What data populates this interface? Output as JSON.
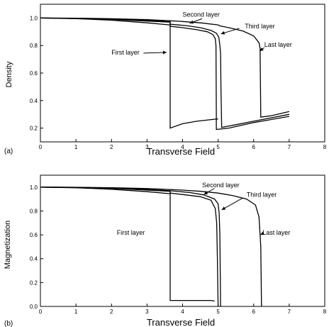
{
  "chart_data": [
    {
      "panel_label": "(a)",
      "type": "line",
      "xlabel": "Transverse Field",
      "ylabel": "Density",
      "xlim": [
        0,
        8
      ],
      "ylim": [
        0.1,
        1.1
      ],
      "xticks": [
        "0",
        "1",
        "2",
        "3",
        "4",
        "5",
        "6",
        "7",
        "8"
      ],
      "yticks": [
        {
          "v": 0.2,
          "label": "0.2"
        },
        {
          "v": 0.4,
          "label": "0.4"
        },
        {
          "v": 0.6,
          "label": "0.6"
        },
        {
          "v": 0.8,
          "label": "0.8"
        },
        {
          "v": 1.0,
          "label": "1.0"
        }
      ],
      "series": [
        {
          "name": "First layer",
          "points": [
            [
              0,
              1.0
            ],
            [
              0.5,
              0.998
            ],
            [
              1,
              0.995
            ],
            [
              1.5,
              0.99
            ],
            [
              2,
              0.984
            ],
            [
              2.5,
              0.975
            ],
            [
              3,
              0.965
            ],
            [
              3.5,
              0.953
            ],
            [
              3.65,
              0.95
            ],
            [
              3.65,
              0.2
            ],
            [
              4,
              0.232
            ],
            [
              4.4,
              0.25
            ],
            [
              4.8,
              0.262
            ],
            [
              5.0,
              0.267
            ]
          ]
        },
        {
          "name": "Second layer",
          "points": [
            [
              0,
              1.0
            ],
            [
              1,
              0.997
            ],
            [
              2,
              0.99
            ],
            [
              3,
              0.978
            ],
            [
              3.65,
              0.97
            ],
            [
              3.65,
              0.94
            ],
            [
              4,
              0.93
            ],
            [
              4.4,
              0.915
            ],
            [
              4.7,
              0.9
            ],
            [
              4.85,
              0.88
            ],
            [
              4.92,
              0.85
            ],
            [
              4.94,
              0.8
            ],
            [
              4.95,
              0.3
            ],
            [
              4.95,
              0.19
            ],
            [
              5.3,
              0.2
            ],
            [
              6,
              0.24
            ],
            [
              7,
              0.285
            ]
          ]
        },
        {
          "name": "Third layer",
          "points": [
            [
              0,
              1.0
            ],
            [
              1,
              0.998
            ],
            [
              2,
              0.992
            ],
            [
              3,
              0.982
            ],
            [
              3.65,
              0.972
            ],
            [
              3.65,
              0.955
            ],
            [
              4.1,
              0.945
            ],
            [
              4.5,
              0.93
            ],
            [
              4.8,
              0.91
            ],
            [
              4.95,
              0.89
            ],
            [
              5.02,
              0.86
            ],
            [
              5.05,
              0.8
            ],
            [
              5.07,
              0.74
            ],
            [
              5.08,
              0.5
            ],
            [
              5.1,
              0.22
            ],
            [
              5.1,
              0.205
            ],
            [
              5.5,
              0.225
            ],
            [
              6,
              0.25
            ],
            [
              7,
              0.3
            ]
          ]
        },
        {
          "name": "Last layer",
          "points": [
            [
              0,
              1.0
            ],
            [
              1,
              0.999
            ],
            [
              2,
              0.995
            ],
            [
              3,
              0.988
            ],
            [
              3.65,
              0.98
            ],
            [
              4,
              0.975
            ],
            [
              4.5,
              0.965
            ],
            [
              5.0,
              0.95
            ],
            [
              5.05,
              0.943
            ],
            [
              5.3,
              0.93
            ],
            [
              5.7,
              0.905
            ],
            [
              6.0,
              0.87
            ],
            [
              6.15,
              0.82
            ],
            [
              6.18,
              0.78
            ],
            [
              6.2,
              0.28
            ],
            [
              6.5,
              0.29
            ],
            [
              7,
              0.32
            ]
          ]
        }
      ],
      "annotations": [
        {
          "text": "Second layer",
          "x": 4.0,
          "y": 1.01
        },
        {
          "text": "Third layer",
          "x": 5.75,
          "y": 0.925
        },
        {
          "text": "First layer",
          "x": 2.0,
          "y": 0.735
        },
        {
          "text": "Last layer",
          "x": 6.3,
          "y": 0.79
        }
      ]
    },
    {
      "panel_label": "(b)",
      "type": "line",
      "xlabel": "Transverse Field",
      "ylabel": "Magnetization",
      "xlim": [
        0,
        8
      ],
      "ylim": [
        0,
        1.1
      ],
      "xticks": [
        "0",
        "1",
        "2",
        "3",
        "4",
        "5",
        "6",
        "7",
        "8"
      ],
      "yticks": [
        {
          "v": 0.0,
          "label": "0.0"
        },
        {
          "v": 0.2,
          "label": "0.2"
        },
        {
          "v": 0.4,
          "label": "0.4"
        },
        {
          "v": 0.6,
          "label": "0.6"
        },
        {
          "v": 0.8,
          "label": "0.8"
        },
        {
          "v": 1.0,
          "label": "1.0"
        }
      ],
      "series": [
        {
          "name": "First layer",
          "points": [
            [
              0,
              1.0
            ],
            [
              1,
              0.995
            ],
            [
              2,
              0.982
            ],
            [
              3,
              0.962
            ],
            [
              3.65,
              0.945
            ],
            [
              3.65,
              0.05
            ],
            [
              4,
              0.05
            ],
            [
              4.5,
              0.05
            ],
            [
              4.8,
              0.05
            ],
            [
              4.9,
              0.045
            ]
          ]
        },
        {
          "name": "Second layer",
          "points": [
            [
              0,
              1.0
            ],
            [
              1,
              0.997
            ],
            [
              2,
              0.99
            ],
            [
              3,
              0.975
            ],
            [
              3.65,
              0.965
            ],
            [
              3.65,
              0.95
            ],
            [
              4.1,
              0.935
            ],
            [
              4.5,
              0.92
            ],
            [
              4.8,
              0.89
            ],
            [
              4.92,
              0.82
            ],
            [
              4.96,
              0.7
            ],
            [
              4.98,
              0.4
            ],
            [
              5.0,
              0.0
            ]
          ]
        },
        {
          "name": "Third layer",
          "points": [
            [
              0,
              1.0
            ],
            [
              1,
              0.998
            ],
            [
              2,
              0.992
            ],
            [
              3,
              0.98
            ],
            [
              3.65,
              0.97
            ],
            [
              4.2,
              0.955
            ],
            [
              4.6,
              0.935
            ],
            [
              4.9,
              0.9
            ],
            [
              5.0,
              0.86
            ],
            [
              5.03,
              0.78
            ],
            [
              5.05,
              0.6
            ],
            [
              5.07,
              0.0
            ]
          ]
        },
        {
          "name": "Last layer",
          "points": [
            [
              0,
              1.0
            ],
            [
              1,
              0.999
            ],
            [
              2,
              0.995
            ],
            [
              3,
              0.988
            ],
            [
              4,
              0.975
            ],
            [
              4.5,
              0.965
            ],
            [
              5.0,
              0.95
            ],
            [
              5.4,
              0.93
            ],
            [
              5.8,
              0.9
            ],
            [
              6.05,
              0.85
            ],
            [
              6.15,
              0.75
            ],
            [
              6.2,
              0.5
            ],
            [
              6.22,
              0.0
            ]
          ]
        }
      ],
      "annotations": [
        {
          "text": "Second layer",
          "x": 4.55,
          "y": 1.0
        },
        {
          "text": "Third layer",
          "x": 5.8,
          "y": 0.92
        },
        {
          "text": "First layer",
          "x": 2.15,
          "y": 0.6
        },
        {
          "text": "Last layer",
          "x": 6.25,
          "y": 0.6
        }
      ]
    }
  ]
}
